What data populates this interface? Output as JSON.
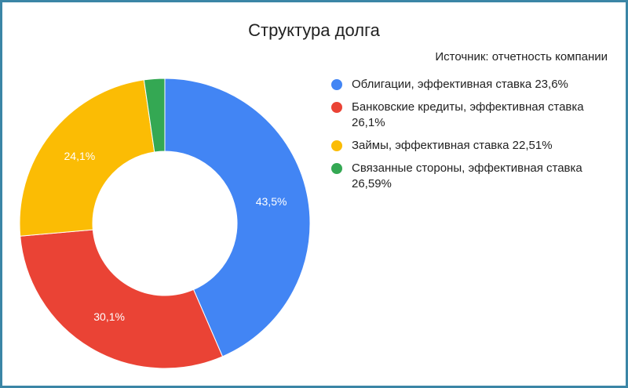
{
  "chart_data": {
    "type": "pie",
    "title": "Структура долга",
    "subtitle": "Источник: отчетность компании",
    "hole": true,
    "legend_position": "right",
    "categories": [
      "Облигации, эффективная ставка 23,6%",
      "Банковские кредиты, эффективная ставка 26,1%",
      "Займы, эффективная ставка 22,51%",
      "Связанные стороны, эффективная ставка 26,59%"
    ],
    "values": [
      43.5,
      30.1,
      24.1,
      2.3
    ],
    "value_labels": [
      "43,5%",
      "30,1%",
      "24,1%",
      ""
    ],
    "colors": [
      "#4285f4",
      "#ea4335",
      "#fbbc04",
      "#34a853"
    ]
  }
}
